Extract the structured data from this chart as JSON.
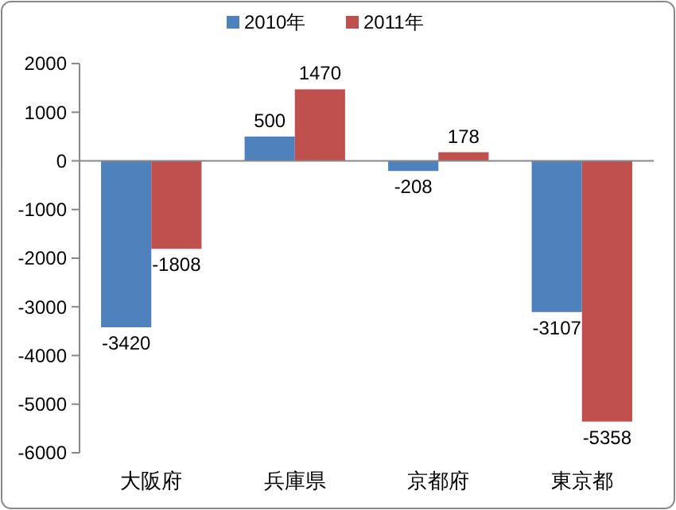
{
  "chart_data": {
    "type": "bar",
    "categories": [
      "大阪府",
      "兵庫県",
      "京都府",
      "東京都"
    ],
    "series": [
      {
        "name": "2010年",
        "color": "#4f81bd",
        "values": [
          -3420,
          500,
          -208,
          -3107
        ]
      },
      {
        "name": "2011年",
        "color": "#c0504d",
        "values": [
          -1808,
          1470,
          178,
          -5358
        ]
      }
    ],
    "ylim": [
      -6000,
      2000
    ],
    "yticks": [
      -6000,
      -5000,
      -4000,
      -3000,
      -2000,
      -1000,
      0,
      1000,
      2000
    ],
    "data_labels": true,
    "legend": "top"
  }
}
